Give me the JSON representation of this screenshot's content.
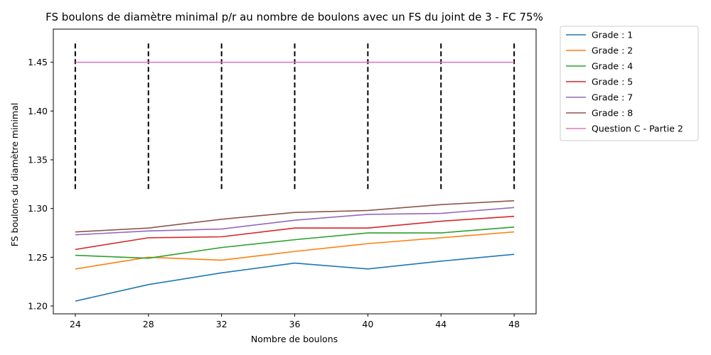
{
  "chart_data": {
    "type": "line",
    "title": "FS boulons de diamètre minimal p/r au nombre de boulons avec un FS du joint de 3 - FC 75%",
    "xlabel": "Nombre de boulons",
    "ylabel": "FS boulons du diamètre minimal",
    "x": [
      24,
      28,
      32,
      36,
      40,
      44,
      48
    ],
    "x_ticks": [
      "24",
      "28",
      "32",
      "36",
      "40",
      "44",
      "48"
    ],
    "y_ticks": [
      "1.20",
      "1.25",
      "1.30",
      "1.35",
      "1.40",
      "1.45"
    ],
    "xlim": [
      22.8,
      49.2
    ],
    "ylim": [
      1.192,
      1.484
    ],
    "grid": false,
    "legend_position": "outside-top-right",
    "series": [
      {
        "name": "Grade : 1",
        "color": "#1f77b4",
        "values": [
          1.205,
          1.222,
          1.234,
          1.244,
          1.238,
          1.246,
          1.253
        ]
      },
      {
        "name": "Grade : 2",
        "color": "#ff7f0e",
        "values": [
          1.238,
          1.25,
          1.247,
          1.256,
          1.264,
          1.27,
          1.276
        ]
      },
      {
        "name": "Grade : 4",
        "color": "#2ca02c",
        "values": [
          1.252,
          1.249,
          1.26,
          1.268,
          1.275,
          1.275,
          1.281
        ]
      },
      {
        "name": "Grade : 5",
        "color": "#d62728",
        "values": [
          1.258,
          1.27,
          1.271,
          1.28,
          1.28,
          1.287,
          1.292
        ]
      },
      {
        "name": "Grade : 7",
        "color": "#9467bd",
        "values": [
          1.273,
          1.277,
          1.279,
          1.288,
          1.294,
          1.295,
          1.301
        ]
      },
      {
        "name": "Grade : 8",
        "color": "#8c564b",
        "values": [
          1.276,
          1.28,
          1.289,
          1.296,
          1.298,
          1.304,
          1.308
        ]
      },
      {
        "name": "Question C - Partie 2",
        "color": "#e377c2",
        "values": [
          1.45,
          1.45,
          1.45,
          1.45,
          1.45,
          1.45,
          1.45
        ]
      }
    ],
    "vertical_dashed_lines": {
      "x": [
        24,
        28,
        32,
        36,
        40,
        44,
        48
      ],
      "y_range": [
        1.32,
        1.47
      ],
      "color": "#000000"
    }
  }
}
